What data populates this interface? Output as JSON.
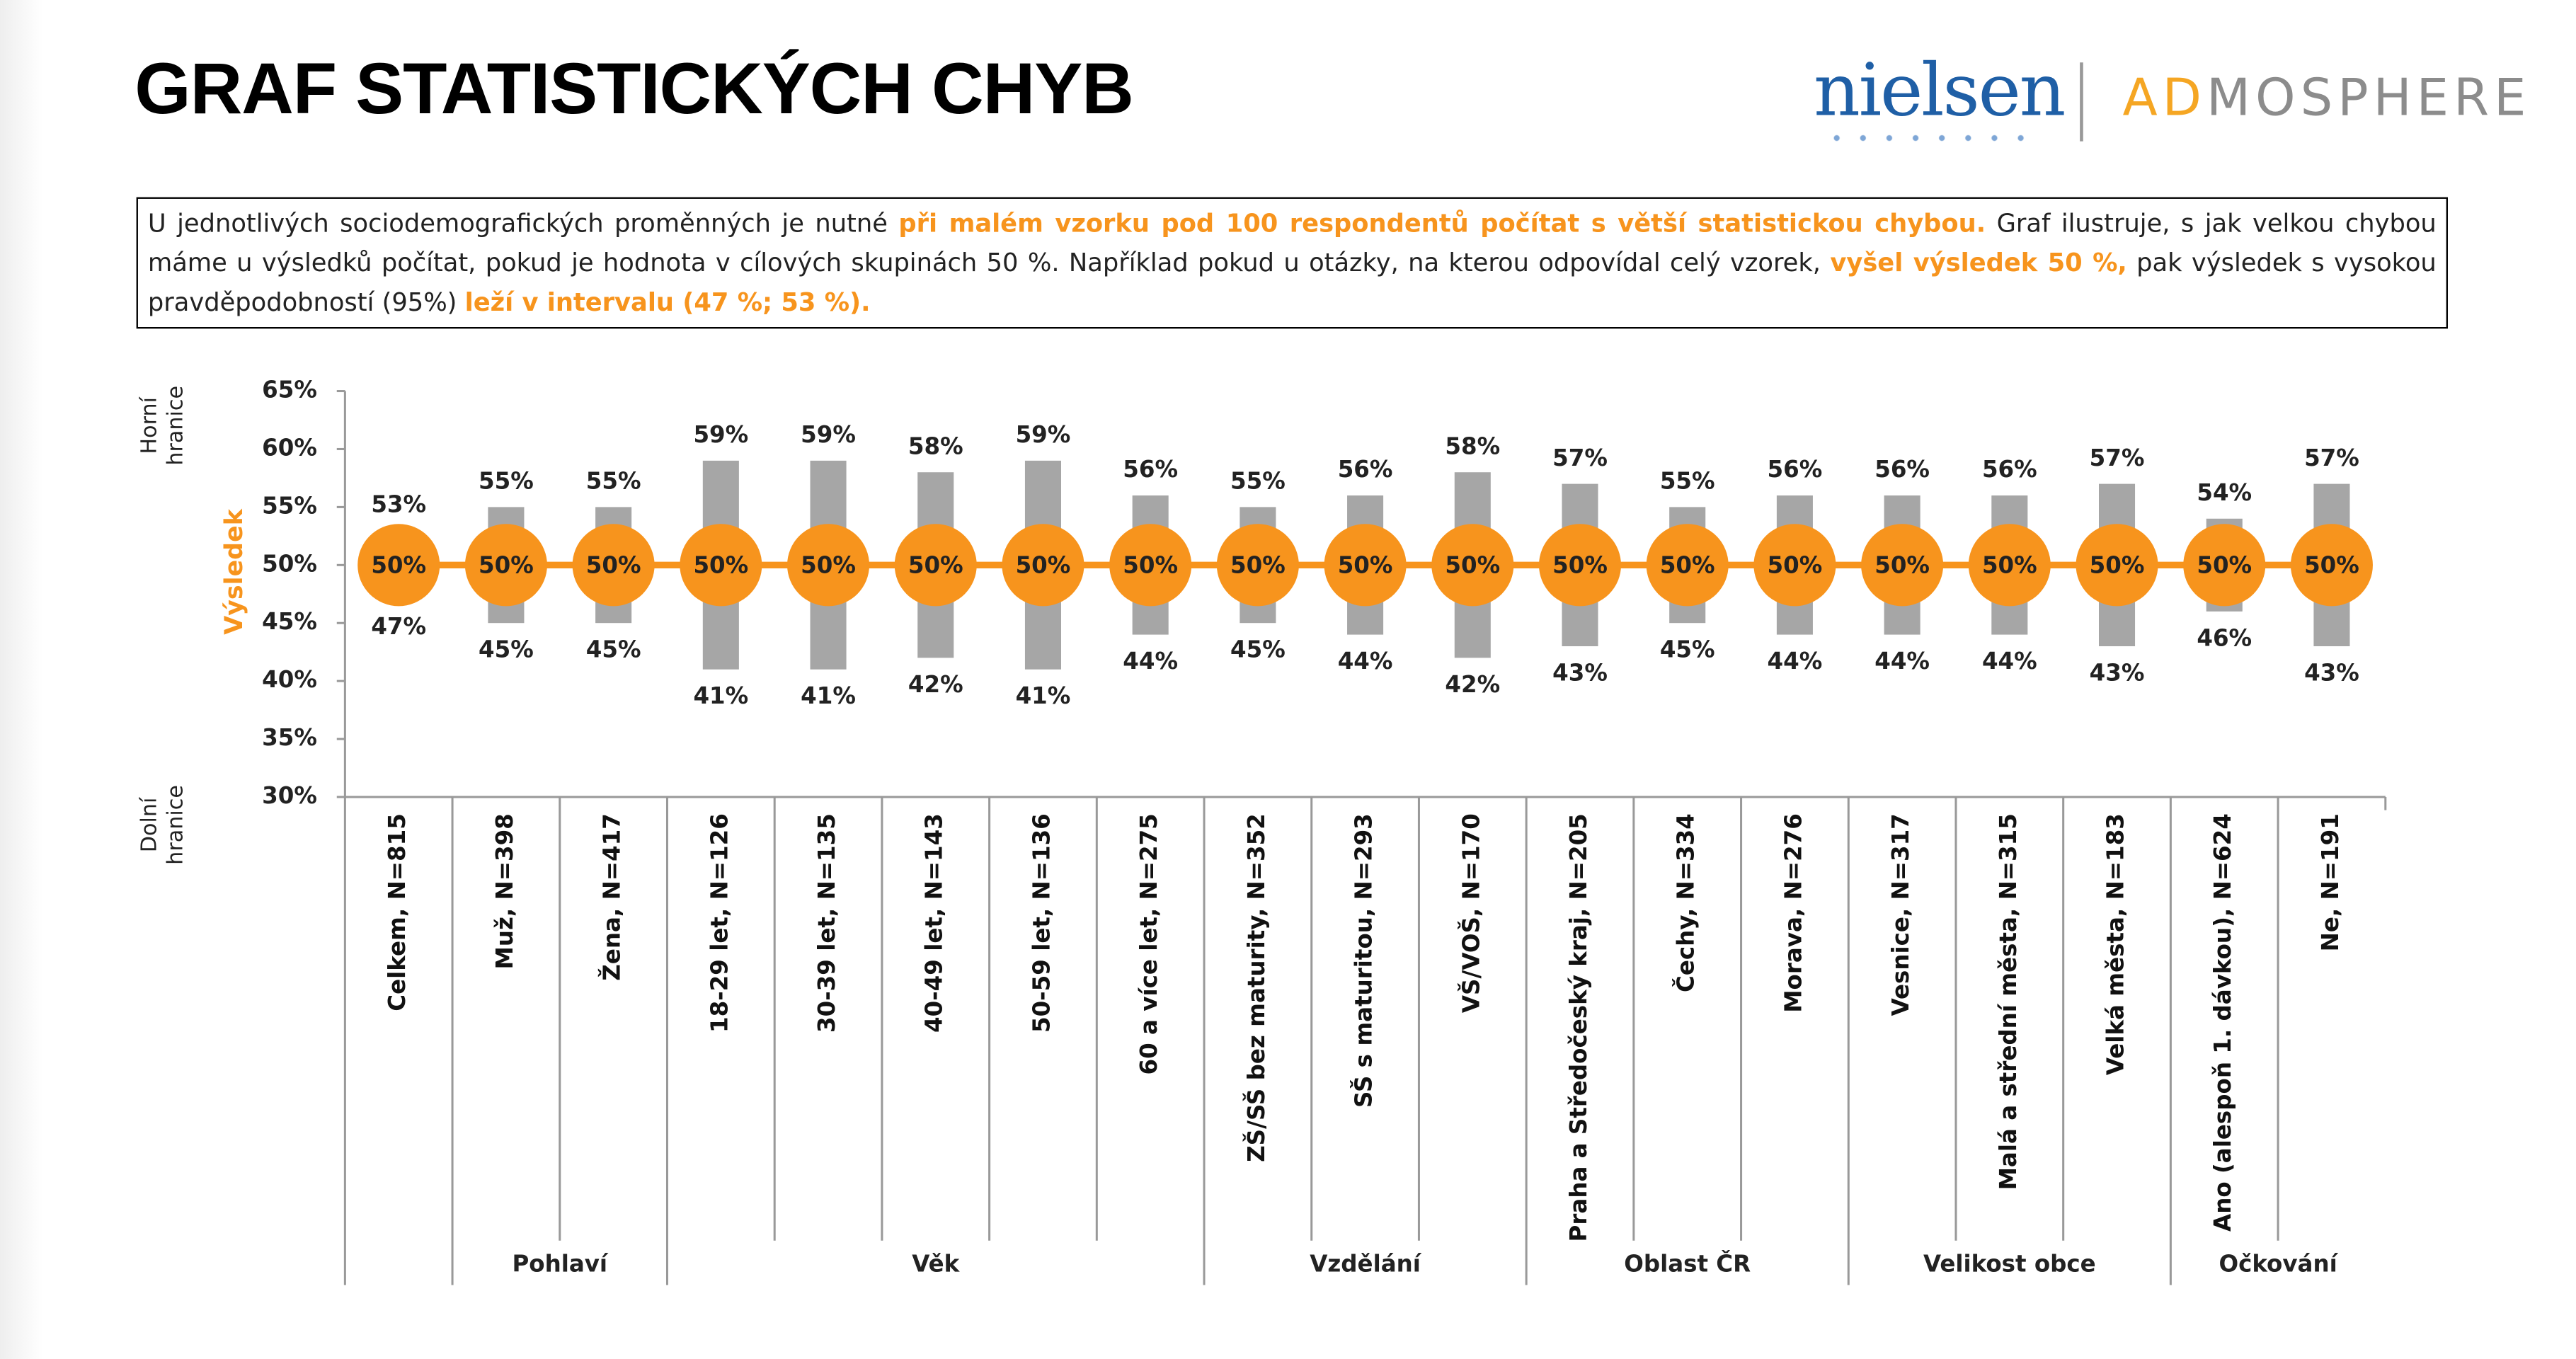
{
  "header": {
    "title": "GRAF STATISTICKÝCH CHYB",
    "logo_left": "nielsen",
    "logo_right_accent": "AD",
    "logo_right_rest": "MOSPHERE"
  },
  "note": [
    {
      "text": "U jednotlivých sociodemografických proměnných je nutné ",
      "highlight": false
    },
    {
      "text": "při malém vzorku pod 100 respondentů počítat s větší statistickou chybou.",
      "highlight": true
    },
    {
      "text": " Graf ilustruje, s jak velkou chybou máme u výsledků počítat, pokud je hodnota v cílových skupinách 50 %. Například pokud u otázky, na kterou odpovídal celý vzorek, ",
      "highlight": false
    },
    {
      "text": "vyšel výsledek 50 %,",
      "highlight": true
    },
    {
      "text": " pak výsledek s vysokou pravděpodobností (95%) ",
      "highlight": false
    },
    {
      "text": "leží v intervalu (47 %; 53 %).",
      "highlight": true
    }
  ],
  "chart_data": {
    "type": "range",
    "categories": [
      "Celkem, N=815",
      "Muž, N=398",
      "Žena, N=417",
      "18-29 let, N=126",
      "30-39 let, N=135",
      "40-49 let, N=143",
      "50-59 let, N=136",
      "60 a více let, N=275",
      "ZŠ/SŠ bez maturity, N=352",
      "SŠ s maturitou, N=293",
      "VŠ/VOŠ, N=170",
      "Praha a Středočeský kraj, N=205",
      "Čechy, N=334",
      "Morava, N=276",
      "Vesnice, N=317",
      "Malá a střední města, N=315",
      "Velká města, N=183",
      "Ano (alespoň 1. dávkou), N=624",
      "Ne, N=191"
    ],
    "groups": [
      {
        "label": "Pohlaví",
        "from": 1,
        "to": 2
      },
      {
        "label": "Věk",
        "from": 3,
        "to": 7
      },
      {
        "label": "Vzdělání",
        "from": 8,
        "to": 10
      },
      {
        "label": "Oblast ČR",
        "from": 11,
        "to": 13
      },
      {
        "label": "Velikost obce",
        "from": 14,
        "to": 16
      },
      {
        "label": "Očkování",
        "from": 17,
        "to": 18
      }
    ],
    "series": [
      {
        "name": "Horní hranice",
        "color": "#a6a6a6",
        "values": [
          53,
          55,
          55,
          59,
          59,
          58,
          59,
          56,
          55,
          56,
          58,
          57,
          55,
          56,
          56,
          56,
          57,
          54,
          57
        ],
        "value_labels": [
          "53%",
          "55%",
          "55%",
          "59%",
          "59%",
          "58%",
          "59%",
          "56%",
          "55%",
          "56%",
          "58%",
          "57%",
          "55%",
          "56%",
          "56%",
          "56%",
          "57%",
          "54%",
          "57%"
        ]
      },
      {
        "name": "Dolní hranice",
        "color": "#a6a6a6",
        "values": [
          47,
          45,
          45,
          41,
          41,
          42,
          41,
          44,
          45,
          44,
          42,
          43,
          45,
          44,
          44,
          44,
          43,
          46,
          43
        ],
        "value_labels": [
          "47%",
          "45%",
          "45%",
          "41%",
          "41%",
          "42%",
          "41%",
          "44%",
          "45%",
          "44%",
          "42%",
          "43%",
          "45%",
          "44%",
          "44%",
          "44%",
          "43%",
          "46%",
          "43%"
        ]
      },
      {
        "name": "Výsledek",
        "color": "#f7941d",
        "values": [
          50,
          50,
          50,
          50,
          50,
          50,
          50,
          50,
          50,
          50,
          50,
          50,
          50,
          50,
          50,
          50,
          50,
          50,
          50
        ],
        "value_labels": [
          "50%",
          "50%",
          "50%",
          "50%",
          "50%",
          "50%",
          "50%",
          "50%",
          "50%",
          "50%",
          "50%",
          "50%",
          "50%",
          "50%",
          "50%",
          "50%",
          "50%",
          "50%",
          "50%"
        ]
      }
    ],
    "ylim": [
      30,
      65
    ],
    "yticks": [
      {
        "value": 30,
        "label": "30%"
      },
      {
        "value": 35,
        "label": "35%"
      },
      {
        "value": 40,
        "label": "40%"
      },
      {
        "value": 45,
        "label": "45%"
      },
      {
        "value": 50,
        "label": "50%"
      },
      {
        "value": 55,
        "label": "55%"
      },
      {
        "value": 60,
        "label": "60%"
      },
      {
        "value": 65,
        "label": "65%"
      }
    ]
  }
}
